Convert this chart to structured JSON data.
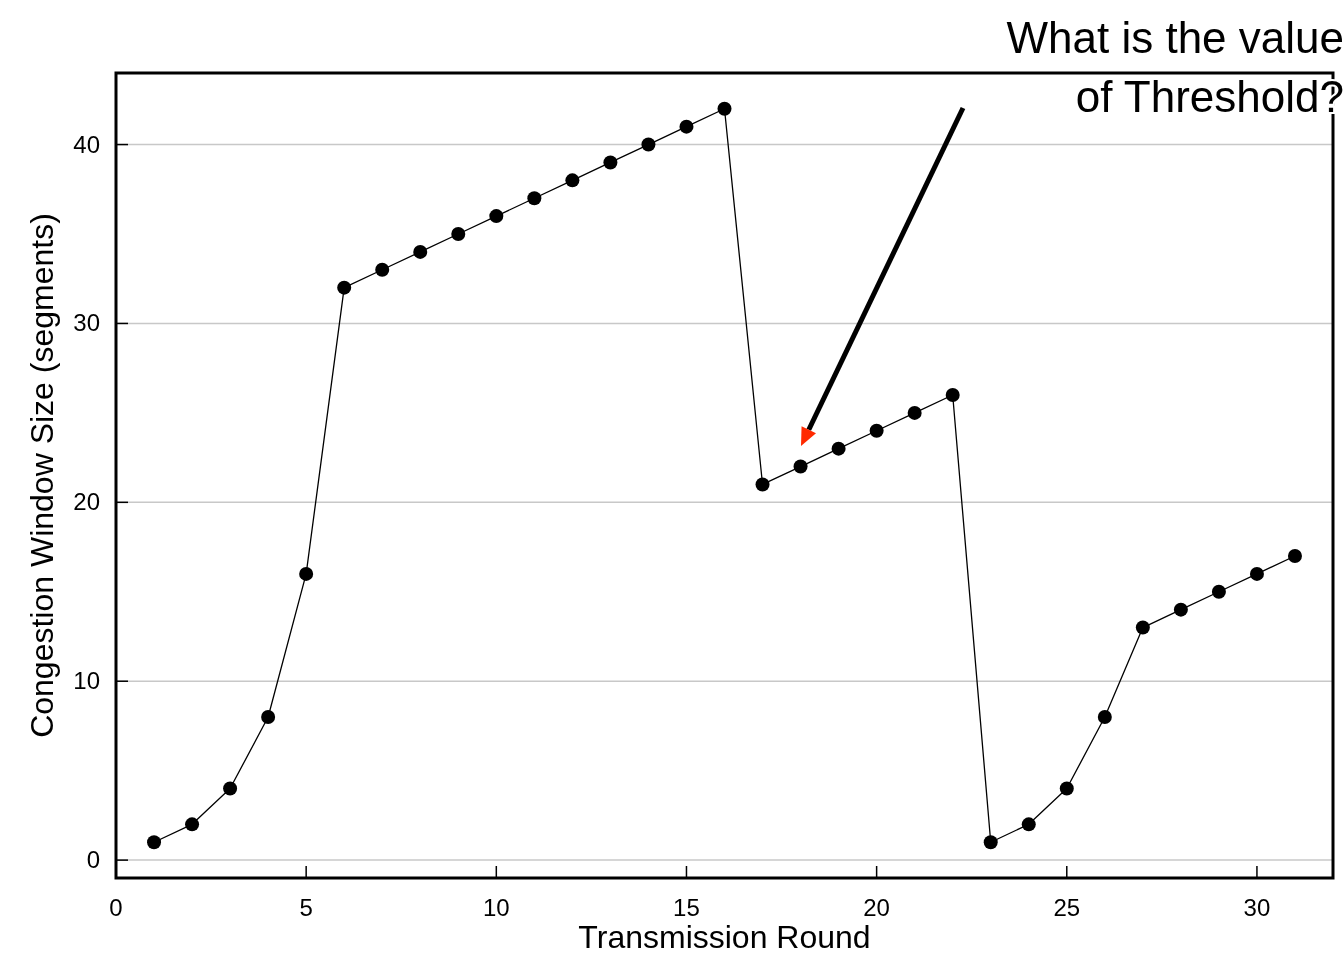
{
  "chart_data": {
    "type": "line",
    "xlabel": "Transmission Round",
    "ylabel": "Congestion Window Size (segments)",
    "x": [
      1,
      2,
      3,
      4,
      5,
      6,
      7,
      8,
      9,
      10,
      11,
      12,
      13,
      14,
      15,
      16,
      17,
      18,
      19,
      20,
      21,
      22,
      23,
      24,
      25,
      26,
      27,
      28,
      29,
      30,
      31
    ],
    "series": [
      {
        "color": "#000000",
        "values": [
          1,
          2,
          4,
          8,
          16,
          32,
          33,
          34,
          35,
          36,
          37,
          38,
          39,
          40,
          41,
          42,
          21,
          22,
          23,
          24,
          25,
          26,
          1,
          2,
          4,
          8,
          13,
          14,
          15,
          16,
          17
        ]
      }
    ],
    "xlim": [
      0,
      32
    ],
    "xticks": [
      0,
      5,
      10,
      15,
      20,
      25,
      30
    ],
    "ylim": [
      -1,
      44
    ],
    "yticks": [
      0,
      10,
      20,
      30,
      40
    ],
    "grid": "y",
    "marker": "circle",
    "line_style": "solid",
    "annotations": [
      "What is the value of Threshold?"
    ]
  }
}
